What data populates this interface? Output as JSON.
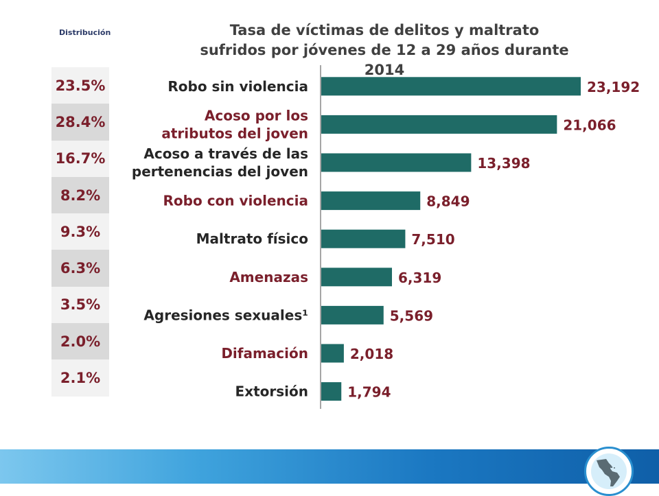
{
  "distribution_header": "Distribución",
  "distribution": [
    "23.5%",
    "28.4%",
    "16.7%",
    "8.2%",
    "9.3%",
    "6.3%",
    "3.5%",
    "2.0%",
    "2.1%"
  ],
  "chart_data": {
    "type": "bar",
    "orientation": "horizontal",
    "title": "Tasa de víctimas de delitos y maltrato",
    "subtitle": "sufridos por  jóvenes de 12 a 29 años durante 2014",
    "categories": [
      [
        "Robo sin violencia"
      ],
      [
        "Acoso por los",
        "atributos del joven"
      ],
      [
        "Acoso a través de las",
        "pertenencias del joven"
      ],
      [
        "Robo con violencia"
      ],
      [
        "Maltrato físico"
      ],
      [
        "Amenazas"
      ],
      [
        "Agresiones sexuales¹"
      ],
      [
        "Difamación"
      ],
      [
        "Extorsión"
      ]
    ],
    "category_colors": [
      "#262626",
      "#7a1f2b",
      "#262626",
      "#7a1f2b",
      "#262626",
      "#7a1f2b",
      "#262626",
      "#7a1f2b",
      "#262626"
    ],
    "values": [
      23192,
      21066,
      13398,
      8849,
      7510,
      6319,
      5569,
      2018,
      1794
    ],
    "value_labels": [
      "23,192",
      "21,066",
      "13,398",
      "8,849",
      "7,510",
      "6,319",
      "5,569",
      "2,018",
      "1,794"
    ],
    "xlim": [
      0,
      23192
    ],
    "bar_color": "#1f6b66",
    "label_color": "#7a1f2b",
    "grid": false,
    "xlabel": "",
    "ylabel": ""
  }
}
